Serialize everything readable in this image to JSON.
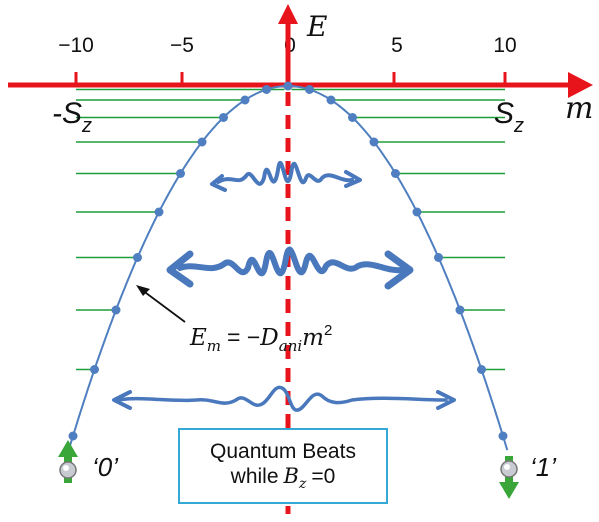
{
  "axes": {
    "vertical_label": "E",
    "horizontal_label": "m",
    "ticks": [
      "−10",
      "−5",
      "0",
      "5",
      "10"
    ]
  },
  "labels": {
    "left_limit_base": "-S",
    "left_limit_sub": "z",
    "right_limit_base": "S",
    "right_limit_sub": "z"
  },
  "formula": {
    "lhs_base": "E",
    "lhs_sub": "m",
    "rhs_prefix": "= −",
    "rhs_base": "D",
    "rhs_sub": "ani",
    "rhs_var": "m",
    "rhs_exp": "2"
  },
  "box": {
    "line1": "Quantum Beats",
    "line2_prefix": "while",
    "line2_var": "B",
    "line2_sub": "z",
    "line2_suffix": "=0"
  },
  "states": {
    "left": "‘0’",
    "right": "‘1’"
  },
  "colors": {
    "axis": "#e8141b",
    "parabola": "#4f7fc0",
    "levels": "#1e9e3a",
    "wave": "#4a78bd",
    "box_border": "#35a9d6",
    "spin_arrow": "#3aa63a"
  },
  "icons": [
    "spin-up-icon",
    "spin-down-icon",
    "pointer-arrow-icon"
  ]
}
